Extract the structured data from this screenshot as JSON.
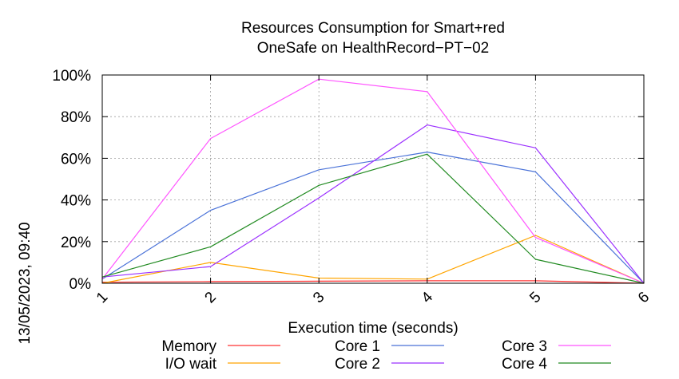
{
  "chart_data": {
    "type": "line",
    "title": "Resources Consumption for Smart+red",
    "subtitle": "OneSafe on HealthRecord−PT−02",
    "xlabel": "Execution time (seconds)",
    "ylabel": "",
    "side_label": "13/05/2023, 09:40",
    "x": [
      1,
      2,
      3,
      4,
      5,
      6
    ],
    "x_tick_labels": [
      "1",
      "2",
      "3",
      "4",
      "5",
      "6"
    ],
    "xlim": [
      1,
      6
    ],
    "ylim": [
      0,
      100
    ],
    "y_tick_values": [
      0,
      20,
      40,
      60,
      80,
      100
    ],
    "y_tick_labels": [
      "0%",
      "20%",
      "40%",
      "60%",
      "80%",
      "100%"
    ],
    "grid": true,
    "legend_position": "bottom",
    "series": [
      {
        "name": "Memory",
        "color": "#ff3333",
        "values": [
          0.5,
          0.8,
          1.0,
          1.2,
          1.2,
          0
        ]
      },
      {
        "name": "I/O wait",
        "color": "#ffa500",
        "values": [
          0,
          10,
          2.5,
          2,
          23,
          0
        ]
      },
      {
        "name": "Core 1",
        "color": "#4a72d8",
        "values": [
          2,
          35,
          54.5,
          63,
          53.5,
          0
        ]
      },
      {
        "name": "Core 2",
        "color": "#9b30ff",
        "values": [
          3,
          8,
          41,
          76,
          65,
          0
        ]
      },
      {
        "name": "Core 3",
        "color": "#ff55ff",
        "values": [
          2,
          69.5,
          98,
          92,
          22,
          0
        ]
      },
      {
        "name": "Core 4",
        "color": "#228b22",
        "values": [
          3,
          17.5,
          47,
          62,
          11.5,
          0
        ]
      }
    ]
  }
}
